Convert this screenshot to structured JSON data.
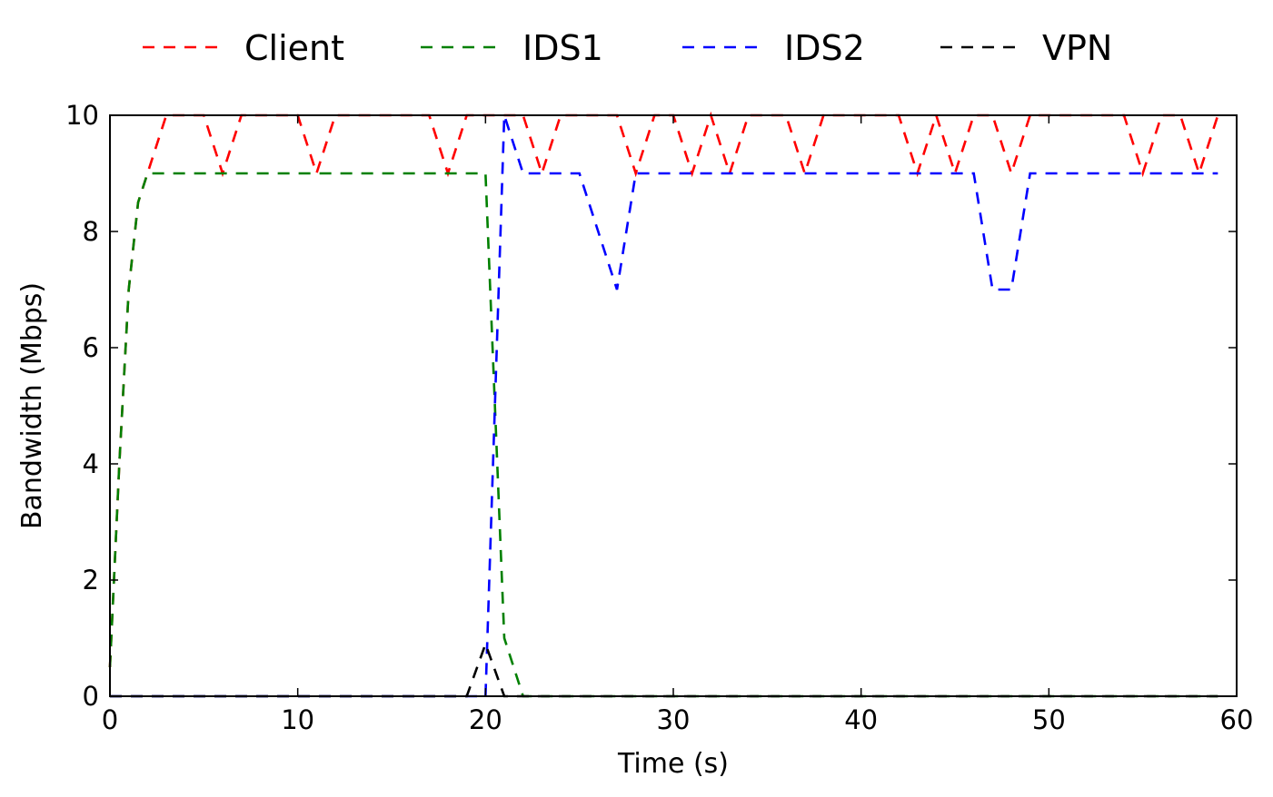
{
  "chart_data": {
    "type": "line",
    "title": "",
    "xlabel": "Time (s)",
    "ylabel": "Bandwidth (Mbps)",
    "xlim": [
      0,
      60
    ],
    "ylim": [
      0,
      10
    ],
    "xticks": [
      0,
      10,
      20,
      30,
      40,
      50,
      60
    ],
    "yticks": [
      0,
      2,
      4,
      6,
      8,
      10
    ],
    "xtick_labels": [
      "0",
      "10",
      "20",
      "30",
      "40",
      "50",
      "60"
    ],
    "ytick_labels": [
      "0",
      "2",
      "4",
      "6",
      "8",
      "10"
    ],
    "grid": false,
    "legend": "top",
    "series": [
      {
        "name": "Client",
        "color": "#ff0000",
        "line_style": "dashed",
        "x": [
          0,
          0.5,
          1,
          1.5,
          2,
          3,
          4,
          5,
          6,
          7,
          8,
          9,
          10,
          11,
          12,
          13,
          14,
          15,
          16,
          17,
          18,
          19,
          20,
          21,
          22,
          23,
          24,
          25,
          26,
          27,
          28,
          29,
          30,
          31,
          32,
          33,
          34,
          35,
          36,
          37,
          38,
          39,
          40,
          41,
          42,
          43,
          44,
          45,
          46,
          47,
          48,
          49,
          50,
          51,
          52,
          53,
          54,
          55,
          56,
          57,
          58,
          59
        ],
        "y": [
          0.5,
          4,
          7,
          8.5,
          9,
          10,
          10,
          10,
          9,
          10,
          10,
          10,
          10,
          9,
          10,
          10,
          10,
          10,
          10,
          10,
          9,
          10,
          10,
          10,
          10,
          9,
          10,
          10,
          10,
          10,
          9,
          10,
          10,
          9,
          10,
          9,
          10,
          10,
          10,
          9,
          10,
          10,
          10,
          10,
          10,
          9,
          10,
          9,
          10,
          10,
          9,
          10,
          10,
          10,
          10,
          10,
          10,
          9,
          10,
          10,
          9,
          10
        ]
      },
      {
        "name": "IDS1",
        "color": "#008000",
        "line_style": "dashed",
        "x": [
          0,
          0.5,
          1,
          1.5,
          2,
          5,
          10,
          15,
          19,
          20,
          20.5,
          21,
          22,
          25,
          30,
          35,
          40,
          45,
          50,
          55,
          59
        ],
        "y": [
          0.5,
          4,
          7,
          8.5,
          9,
          9,
          9,
          9,
          9,
          9,
          5,
          1,
          0,
          0,
          0,
          0,
          0,
          0,
          0,
          0,
          0
        ]
      },
      {
        "name": "IDS2",
        "color": "#0000ff",
        "line_style": "dashed",
        "x": [
          0,
          5,
          10,
          15,
          19,
          20,
          20.5,
          21,
          22,
          23,
          24,
          25,
          26,
          27,
          28,
          30,
          35,
          40,
          45,
          46,
          47,
          48,
          49,
          50,
          55,
          59
        ],
        "y": [
          0,
          0,
          0,
          0,
          0,
          0,
          5,
          10,
          9,
          9,
          9,
          9,
          8,
          7,
          9,
          9,
          9,
          9,
          9,
          9,
          7,
          7,
          9,
          9,
          9,
          9
        ]
      },
      {
        "name": "VPN",
        "color": "#000000",
        "line_style": "dashed",
        "x": [
          0,
          5,
          10,
          15,
          19,
          20,
          21,
          22,
          25,
          30,
          35,
          40,
          45,
          50,
          55,
          59
        ],
        "y": [
          0,
          0,
          0,
          0,
          0,
          0.9,
          0,
          0,
          0,
          0,
          0,
          0,
          0,
          0,
          0,
          0
        ]
      }
    ]
  }
}
